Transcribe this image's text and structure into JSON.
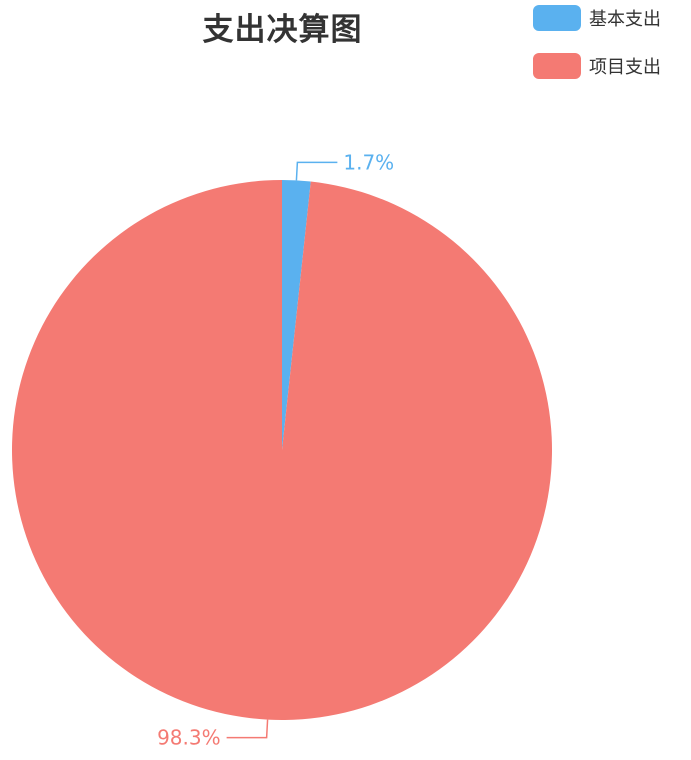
{
  "chart_data": {
    "type": "pie",
    "title": "支出决算图",
    "legend_position": "top-right",
    "categories": [
      "基本支出",
      "项目支出"
    ],
    "values": [
      1.7,
      98.3
    ],
    "labels": [
      "1.7%",
      "98.3%"
    ],
    "colors": [
      "#5ab1ef",
      "#f47a73"
    ]
  }
}
